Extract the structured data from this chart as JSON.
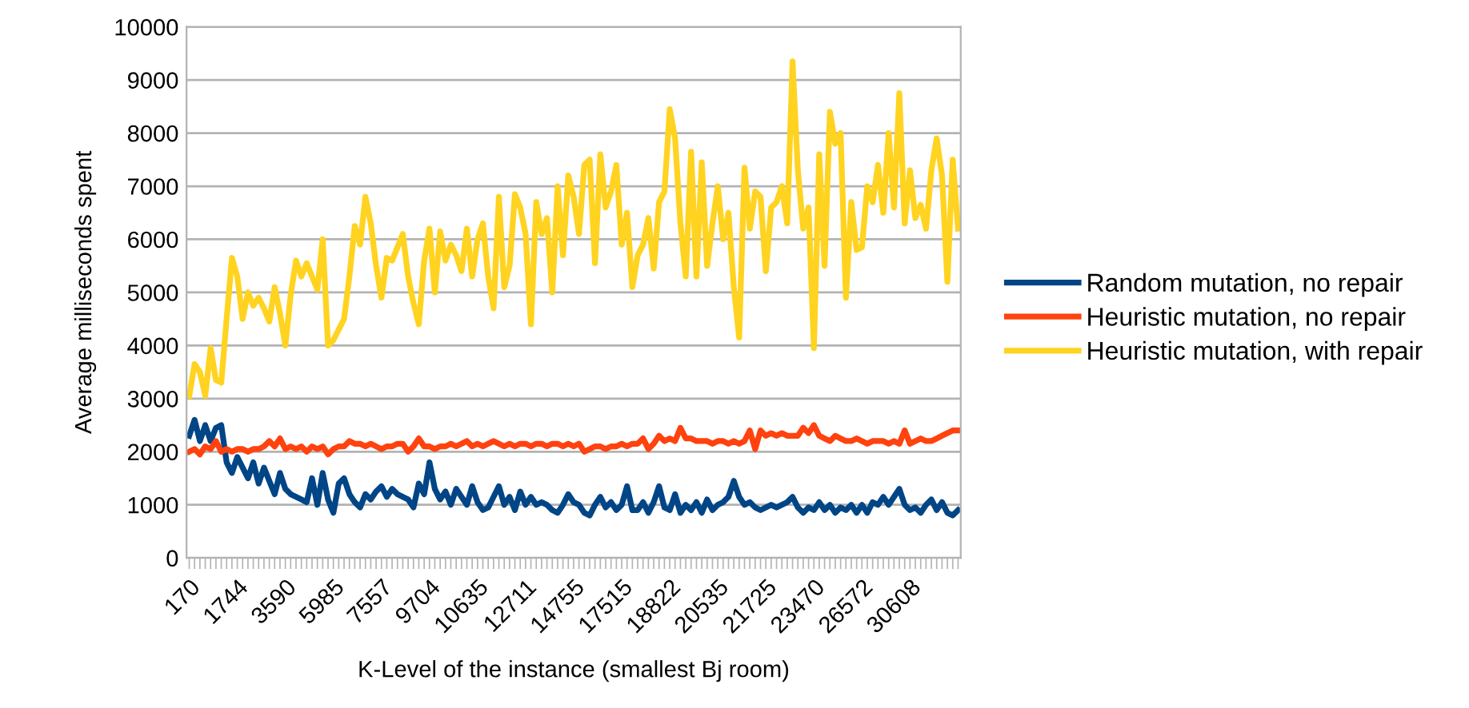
{
  "chart_data": {
    "type": "line",
    "xlabel": "K-Level of the instance (smallest Bj room)",
    "ylabel": "Average milliseconds spent",
    "categories": [
      "170",
      null,
      null,
      null,
      null,
      null,
      null,
      null,
      null,
      "1744",
      null,
      null,
      null,
      null,
      null,
      null,
      null,
      null,
      "3590",
      null,
      null,
      null,
      null,
      null,
      null,
      null,
      null,
      "5985",
      null,
      null,
      null,
      null,
      null,
      null,
      null,
      null,
      "7557",
      null,
      null,
      null,
      null,
      null,
      null,
      null,
      null,
      "9704",
      null,
      null,
      null,
      null,
      null,
      null,
      null,
      null,
      "10635",
      null,
      null,
      null,
      null,
      null,
      null,
      null,
      null,
      "12711",
      null,
      null,
      null,
      null,
      null,
      null,
      null,
      null,
      "14755",
      null,
      null,
      null,
      null,
      null,
      null,
      null,
      null,
      "17515",
      null,
      null,
      null,
      null,
      null,
      null,
      null,
      null,
      "18822",
      null,
      null,
      null,
      null,
      null,
      null,
      null,
      null,
      "20535",
      null,
      null,
      null,
      null,
      null,
      null,
      null,
      null,
      "21725",
      null,
      null,
      null,
      null,
      null,
      null,
      null,
      null,
      "23470",
      null,
      null,
      null,
      null,
      null,
      null,
      null,
      null,
      "26572",
      null,
      null,
      null,
      null,
      null,
      null,
      null,
      null,
      "30608",
      null,
      null,
      null,
      null,
      null,
      null,
      null,
      null,
      null
    ],
    "series": [
      {
        "name": "Random mutation, no repair",
        "color": "#004586",
        "values": [
          2300,
          2600,
          2200,
          2500,
          2200,
          2450,
          2500,
          1800,
          1600,
          1900,
          1700,
          1500,
          1800,
          1400,
          1700,
          1450,
          1200,
          1600,
          1300,
          1200,
          1150,
          1100,
          1050,
          1500,
          1000,
          1600,
          1100,
          850,
          1400,
          1500,
          1200,
          1050,
          950,
          1200,
          1100,
          1250,
          1350,
          1150,
          1300,
          1200,
          1150,
          1100,
          950,
          1400,
          1200,
          1800,
          1300,
          1100,
          1250,
          1000,
          1300,
          1150,
          1000,
          1350,
          1050,
          900,
          950,
          1150,
          1350,
          1000,
          1150,
          900,
          1250,
          1000,
          1150,
          1000,
          1050,
          1000,
          900,
          850,
          1000,
          1200,
          1050,
          1000,
          850,
          800,
          1000,
          1150,
          950,
          1050,
          900,
          1000,
          1350,
          900,
          900,
          1050,
          850,
          1050,
          1350,
          950,
          900,
          1200,
          850,
          1000,
          900,
          1050,
          850,
          1100,
          900,
          1000,
          1050,
          1150,
          1450,
          1150,
          1000,
          1050,
          950,
          900,
          950,
          1000,
          950,
          1000,
          1050,
          1150,
          950,
          850,
          950,
          900,
          1050,
          900,
          1000,
          850,
          950,
          900,
          1000,
          850,
          1000,
          850,
          1050,
          1000,
          1150,
          1000,
          1150,
          1300,
          1000,
          900,
          950,
          850,
          1000,
          1100,
          900,
          1050,
          850,
          800,
          900
        ]
      },
      {
        "name": "Heuristic mutation, no repair",
        "color": "#ff420e",
        "values": [
          2000,
          2050,
          1950,
          2100,
          2050,
          2200,
          2000,
          2050,
          2000,
          2050,
          2050,
          2000,
          2050,
          2050,
          2100,
          2200,
          2100,
          2250,
          2050,
          2100,
          2050,
          2100,
          2000,
          2100,
          2050,
          2100,
          1950,
          2050,
          2100,
          2100,
          2200,
          2150,
          2150,
          2100,
          2150,
          2100,
          2050,
          2100,
          2100,
          2150,
          2150,
          2000,
          2100,
          2250,
          2100,
          2100,
          2050,
          2100,
          2100,
          2150,
          2100,
          2150,
          2200,
          2100,
          2150,
          2100,
          2150,
          2200,
          2150,
          2100,
          2150,
          2100,
          2150,
          2150,
          2100,
          2150,
          2150,
          2100,
          2150,
          2150,
          2100,
          2150,
          2100,
          2150,
          2000,
          2050,
          2100,
          2100,
          2050,
          2100,
          2100,
          2150,
          2100,
          2150,
          2150,
          2250,
          2050,
          2150,
          2300,
          2200,
          2250,
          2200,
          2450,
          2250,
          2250,
          2200,
          2200,
          2200,
          2150,
          2200,
          2200,
          2150,
          2200,
          2150,
          2200,
          2400,
          2050,
          2400,
          2300,
          2350,
          2300,
          2350,
          2300,
          2300,
          2300,
          2450,
          2350,
          2500,
          2300,
          2250,
          2200,
          2300,
          2250,
          2200,
          2200,
          2250,
          2200,
          2150,
          2200,
          2200,
          2200,
          2150,
          2200,
          2150,
          2400,
          2150,
          2200,
          2250,
          2200,
          2200,
          2250,
          2300,
          2350,
          2400,
          2400
        ]
      },
      {
        "name": "Heuristic mutation, with repair",
        "color": "#ffd320",
        "values": [
          3050,
          3650,
          3500,
          3050,
          3950,
          3350,
          3300,
          4500,
          5650,
          5300,
          4500,
          5000,
          4750,
          4900,
          4700,
          4450,
          5100,
          4600,
          4000,
          4950,
          5600,
          5300,
          5550,
          5300,
          5050,
          6000,
          4000,
          4100,
          4300,
          4500,
          5300,
          6250,
          5900,
          6800,
          6300,
          5500,
          4900,
          5650,
          5600,
          5850,
          6100,
          5300,
          4800,
          4400,
          5600,
          6200,
          5000,
          6150,
          5600,
          5900,
          5700,
          5400,
          6200,
          5300,
          6000,
          6300,
          5300,
          4700,
          6800,
          5100,
          5500,
          6850,
          6600,
          6100,
          4400,
          6700,
          6100,
          6400,
          5000,
          7000,
          5700,
          7200,
          6800,
          6100,
          7400,
          7500,
          5550,
          7600,
          6600,
          6900,
          7400,
          5900,
          6500,
          5100,
          5700,
          5900,
          6400,
          5450,
          6700,
          6900,
          8450,
          7900,
          6300,
          5300,
          7650,
          5300,
          7450,
          5500,
          6300,
          7000,
          6000,
          6500,
          5100,
          4150,
          7350,
          6200,
          6900,
          6800,
          5400,
          6600,
          6700,
          7000,
          6300,
          9350,
          7300,
          6200,
          6600,
          3950,
          7600,
          5500,
          8400,
          7800,
          8000,
          4900,
          6700,
          5800,
          5850,
          7000,
          6700,
          7400,
          6500,
          8000,
          6600,
          8750,
          6300,
          7300,
          6400,
          6650,
          6200,
          7300,
          7900,
          7200,
          5200,
          7500,
          6200
        ]
      }
    ],
    "ylim": [
      0,
      10000
    ],
    "yticks": [
      0,
      1000,
      2000,
      3000,
      4000,
      5000,
      6000,
      7000,
      8000,
      9000,
      10000
    ],
    "grid": "y",
    "legend": "right",
    "marker": "none",
    "line_style": "solid"
  }
}
